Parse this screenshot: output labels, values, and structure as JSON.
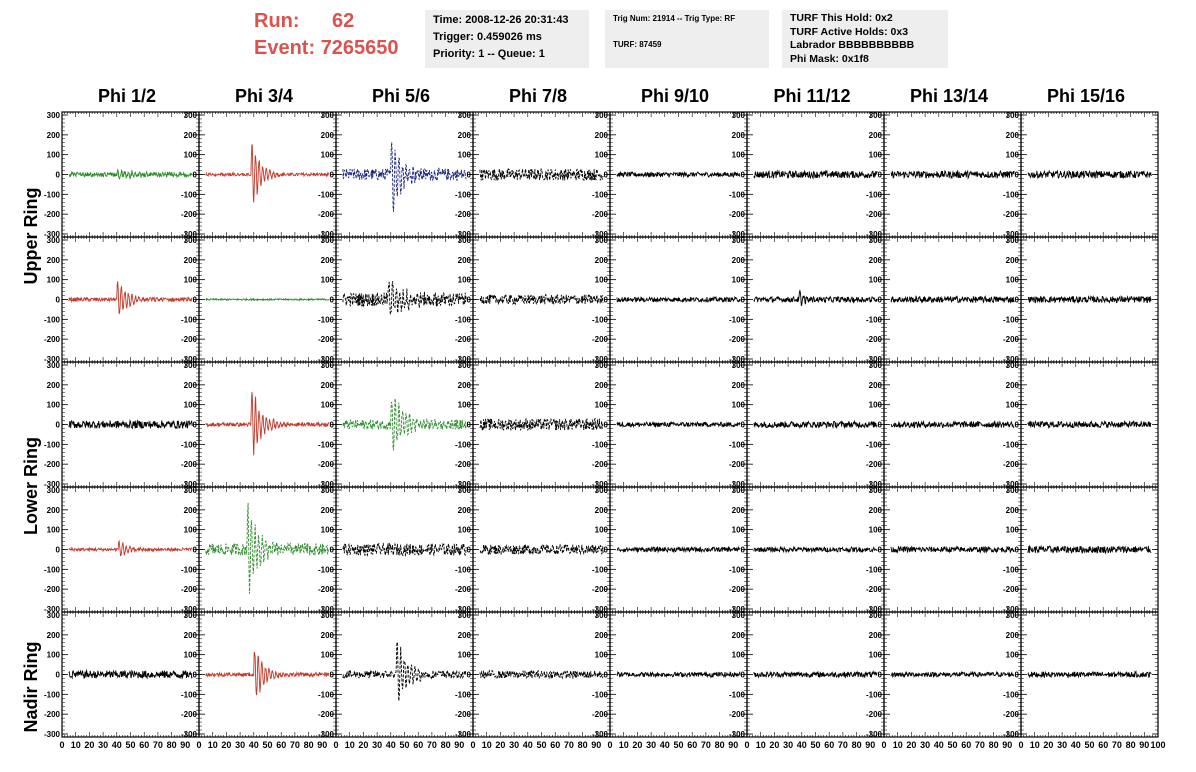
{
  "header": {
    "run_label": "Run:",
    "run_value": "62",
    "event_label": "Event:",
    "event_value": "7265650"
  },
  "info_time": [
    "Time: 2008-12-26 20:31:43",
    "Trigger: 0.459026 ms",
    "Priority: 1 -- Queue: 1"
  ],
  "info_trig": [
    "Trig Num: 21914 -- Trig Type: RF",
    "",
    "TURF: 87459"
  ],
  "info_turf": [
    "TURF This Hold: 0x2",
    "TURF Active Holds: 0x3",
    "Labrador BBBBBBBBBB",
    "Phi Mask: 0x1f8"
  ],
  "columns": [
    "Phi 1/2",
    "Phi 3/4",
    "Phi 5/6",
    "Phi 7/8",
    "Phi 9/10",
    "Phi 11/12",
    "Phi 13/14",
    "Phi 15/16"
  ],
  "rows": [
    "Upper Ring",
    "Lower Ring",
    "Nadir Ring"
  ],
  "colors": {
    "red": "#c0392b",
    "green": "#2e8b2e",
    "blue": "#1a237e",
    "black": "#000000"
  },
  "chart_data": {
    "type": "line",
    "xlim": [
      0,
      100
    ],
    "ylim": [
      -300,
      300
    ],
    "y_ticks": [
      300,
      200,
      100,
      0,
      -100,
      -200,
      -300
    ],
    "x_ticks": [
      0,
      10,
      20,
      30,
      40,
      50,
      60,
      70,
      80,
      90,
      100
    ],
    "x_tick_labels": [
      "0",
      "10",
      "20",
      "30",
      "40",
      "50",
      "60",
      "70",
      "80",
      "90",
      "100"
    ],
    "panels": [
      [
        {
          "color": "green",
          "style": "solid",
          "noise": 12,
          "pulse": {
            "t": 40,
            "amp": 25,
            "decay": 12
          }
        },
        {
          "color": "red",
          "style": "solid",
          "noise": 8,
          "pulse": {
            "t": 38,
            "amp": 220,
            "decay": 6
          }
        },
        {
          "color": "blue",
          "style": "dashed",
          "noise": 30,
          "pulse": {
            "t": 40,
            "amp": 250,
            "decay": 7
          }
        },
        {
          "color": "black",
          "style": "dashed",
          "noise": 30,
          "pulse": null
        },
        {
          "color": "black",
          "style": "solid",
          "noise": 12,
          "pulse": null
        },
        {
          "color": "black",
          "style": "solid",
          "noise": 18,
          "pulse": null
        },
        {
          "color": "black",
          "style": "solid",
          "noise": 18,
          "pulse": null
        },
        {
          "color": "black",
          "style": "solid",
          "noise": 18,
          "pulse": null
        }
      ],
      [
        {
          "color": "red",
          "style": "solid",
          "noise": 10,
          "pulse": {
            "t": 40,
            "amp": 100,
            "decay": 8
          }
        },
        {
          "color": "green",
          "style": "solid",
          "noise": 4,
          "pulse": null
        },
        {
          "color": "black",
          "style": "dashed",
          "noise": 35,
          "pulse": {
            "t": 38,
            "amp": 110,
            "decay": 10
          }
        },
        {
          "color": "black",
          "style": "dashed",
          "noise": 25,
          "pulse": null
        },
        {
          "color": "black",
          "style": "solid",
          "noise": 12,
          "pulse": null
        },
        {
          "color": "black",
          "style": "solid",
          "noise": 14,
          "pulse": {
            "t": 38,
            "amp": 55,
            "decay": 3
          }
        },
        {
          "color": "black",
          "style": "solid",
          "noise": 16,
          "pulse": null
        },
        {
          "color": "black",
          "style": "solid",
          "noise": 16,
          "pulse": null
        }
      ],
      [
        {
          "color": "black",
          "style": "solid",
          "noise": 20,
          "pulse": null
        },
        {
          "color": "red",
          "style": "solid",
          "noise": 10,
          "pulse": {
            "t": 38,
            "amp": 220,
            "decay": 7
          }
        },
        {
          "color": "green",
          "style": "dashed",
          "noise": 25,
          "pulse": {
            "t": 40,
            "amp": 190,
            "decay": 8
          }
        },
        {
          "color": "black",
          "style": "dashed",
          "noise": 30,
          "pulse": null
        },
        {
          "color": "black",
          "style": "solid",
          "noise": 12,
          "pulse": null
        },
        {
          "color": "black",
          "style": "solid",
          "noise": 16,
          "pulse": null
        },
        {
          "color": "black",
          "style": "solid",
          "noise": 16,
          "pulse": null
        },
        {
          "color": "black",
          "style": "solid",
          "noise": 16,
          "pulse": null
        }
      ],
      [
        {
          "color": "red",
          "style": "solid",
          "noise": 8,
          "pulse": {
            "t": 41,
            "amp": 60,
            "decay": 6
          }
        },
        {
          "color": "green",
          "style": "dashed",
          "noise": 30,
          "pulse": {
            "t": 35,
            "amp": 280,
            "decay": 8
          }
        },
        {
          "color": "black",
          "style": "dashed",
          "noise": 30,
          "pulse": null
        },
        {
          "color": "black",
          "style": "dashed",
          "noise": 25,
          "pulse": null
        },
        {
          "color": "black",
          "style": "solid",
          "noise": 12,
          "pulse": null
        },
        {
          "color": "black",
          "style": "solid",
          "noise": 12,
          "pulse": null
        },
        {
          "color": "black",
          "style": "solid",
          "noise": 14,
          "pulse": null
        },
        {
          "color": "black",
          "style": "solid",
          "noise": 18,
          "pulse": null
        }
      ],
      [
        {
          "color": "black",
          "style": "solid",
          "noise": 20,
          "pulse": null
        },
        {
          "color": "red",
          "style": "solid",
          "noise": 10,
          "pulse": {
            "t": 40,
            "amp": 170,
            "decay": 7
          }
        },
        {
          "color": "black",
          "style": "dashed",
          "noise": 20,
          "pulse": {
            "t": 44,
            "amp": 220,
            "decay": 7
          }
        },
        {
          "color": "black",
          "style": "dashed",
          "noise": 20,
          "pulse": null
        },
        {
          "color": "black",
          "style": "solid",
          "noise": 12,
          "pulse": null
        },
        {
          "color": "black",
          "style": "solid",
          "noise": 14,
          "pulse": null
        },
        {
          "color": "black",
          "style": "solid",
          "noise": 12,
          "pulse": null
        },
        {
          "color": "black",
          "style": "solid",
          "noise": 14,
          "pulse": null
        }
      ]
    ]
  }
}
